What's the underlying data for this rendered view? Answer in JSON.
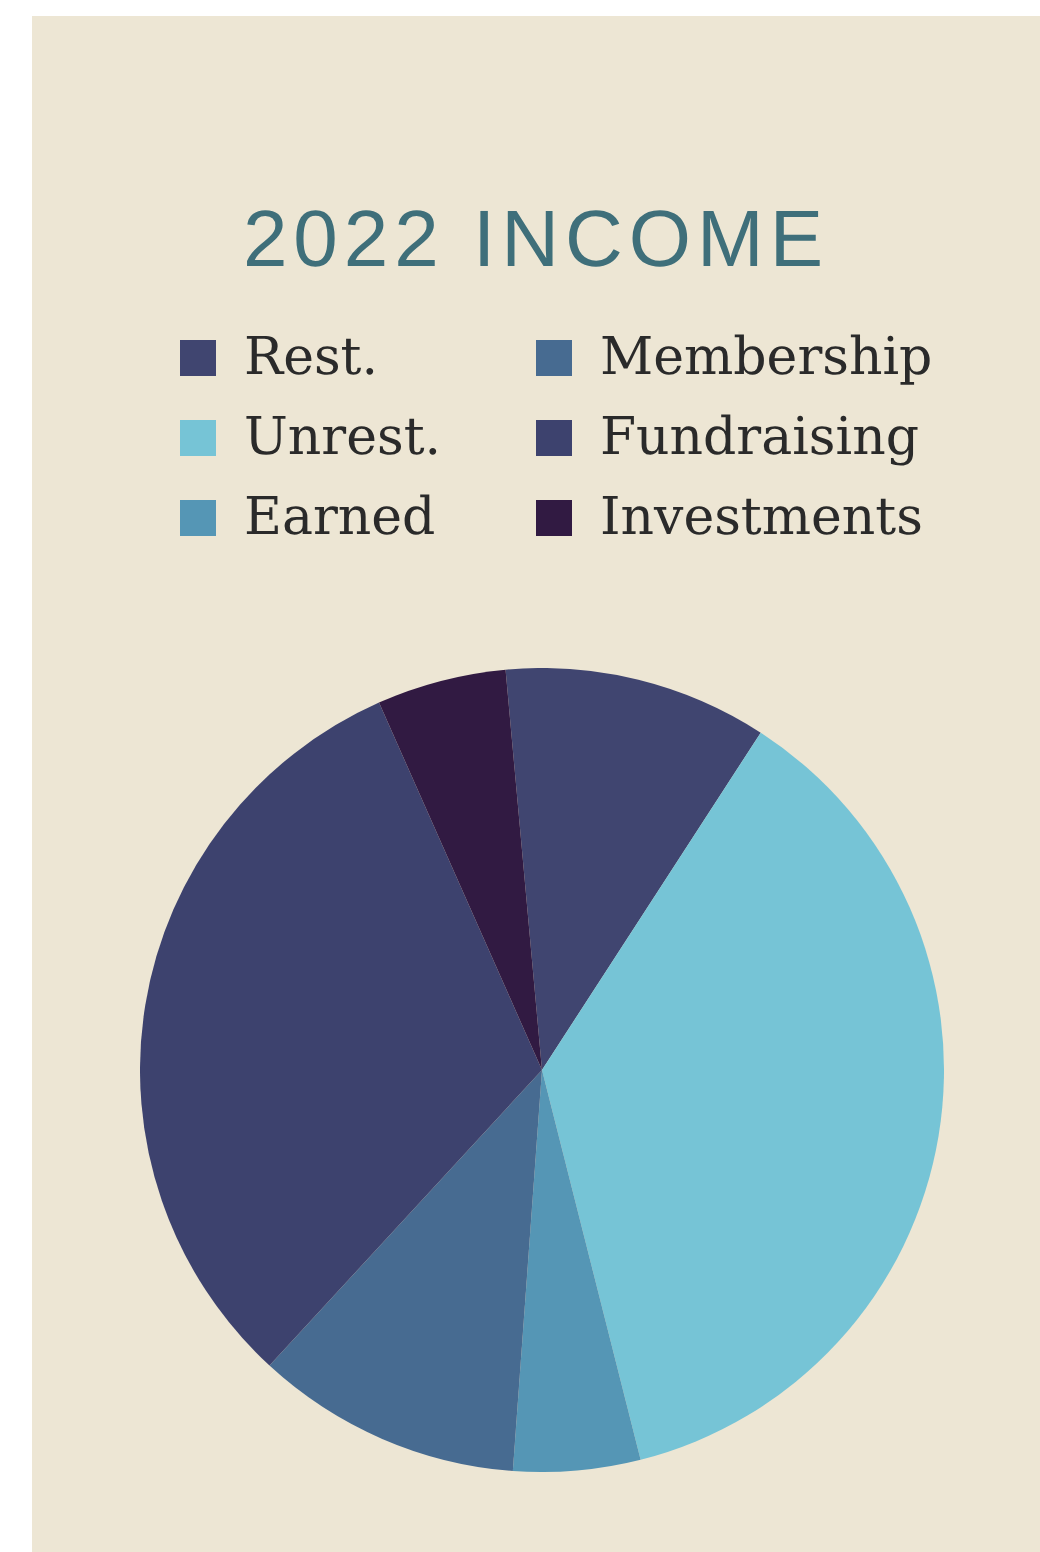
{
  "chart_data": {
    "type": "pie",
    "title": "2022 INCOME",
    "legend": "top",
    "categories": [
      "Rest.",
      "Unrest.",
      "Earned",
      "Membership",
      "Fundraising",
      "Investments"
    ],
    "values": [
      10.6,
      36.9,
      5.1,
      10.7,
      31.5,
      5.2
    ],
    "colors": [
      "#404570",
      "#76c4d6",
      "#5596b5",
      "#476b91",
      "#3d426e",
      "#311a42"
    ]
  }
}
